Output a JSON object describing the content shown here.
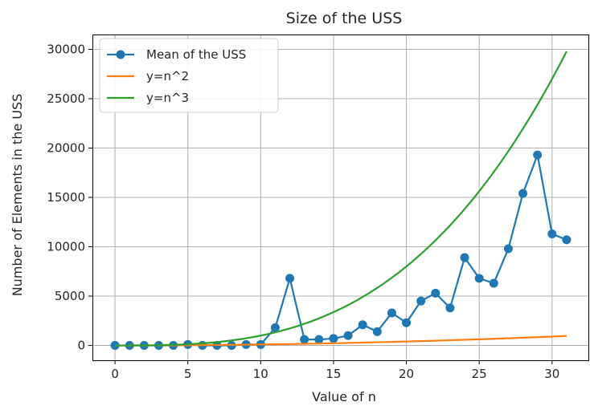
{
  "chart_data": {
    "type": "line",
    "title": "Size of the USS",
    "xlabel": "Value of n",
    "ylabel": "Number of Elements in the USS",
    "xlim": [
      -1.55,
      32.55
    ],
    "ylim": [
      -1500,
      31500
    ],
    "xticks": [
      0,
      5,
      10,
      15,
      20,
      25,
      30
    ],
    "yticks": [
      0,
      5000,
      10000,
      15000,
      20000,
      25000,
      30000
    ],
    "grid": true,
    "legend_position": "top-left",
    "series": [
      {
        "name": "Mean of the USS",
        "color": "#1f77b4",
        "marker": "circle",
        "x": [
          0,
          1,
          2,
          3,
          4,
          5,
          6,
          7,
          8,
          9,
          10,
          11,
          12,
          13,
          14,
          15,
          16,
          17,
          18,
          19,
          20,
          21,
          22,
          23,
          24,
          25,
          26,
          27,
          28,
          29,
          30,
          31
        ],
        "values": [
          0,
          0,
          0,
          0,
          0,
          100,
          0,
          0,
          0,
          100,
          100,
          1800,
          6800,
          600,
          600,
          700,
          1000,
          2100,
          1400,
          3300,
          2300,
          4500,
          5300,
          3800,
          8900,
          6800,
          6300,
          9800,
          15400,
          19300,
          11300,
          10700
        ]
      },
      {
        "name": "y=n^2",
        "color": "#ff7f0e",
        "marker": "none",
        "formula": "n^2",
        "domain": [
          0,
          31
        ]
      },
      {
        "name": "y=n^3",
        "color": "#2ca02c",
        "marker": "none",
        "formula": "n^3",
        "domain": [
          0,
          31
        ]
      }
    ]
  }
}
